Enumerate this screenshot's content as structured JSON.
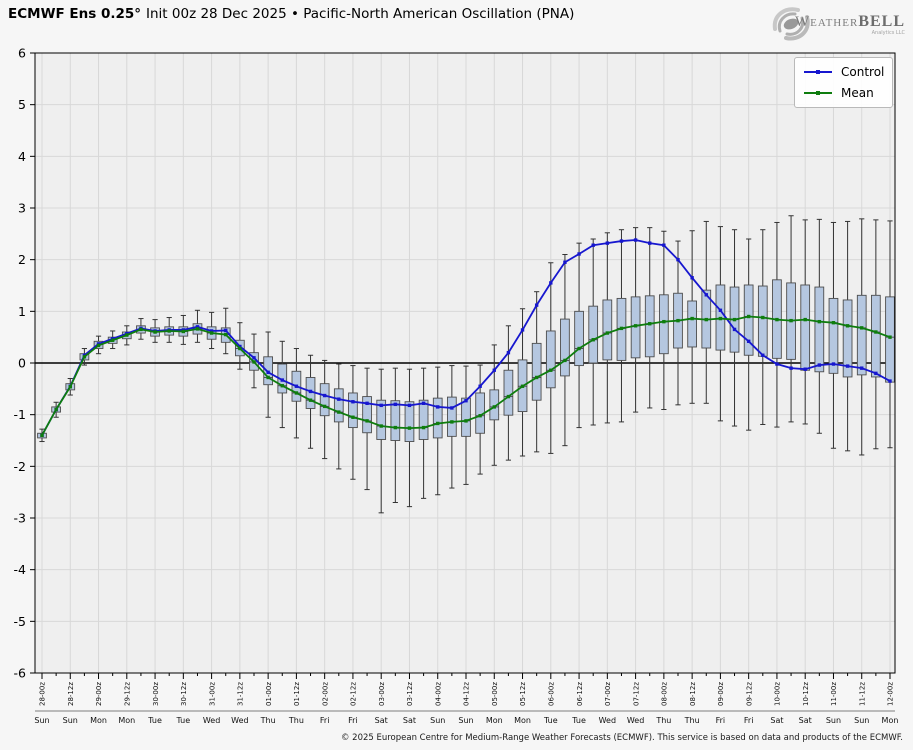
{
  "header": {
    "title_bold": "ECMWF Ens 0.25°",
    "title_rest": "Init 00z 28 Dec 2025 • Pacific-North American Oscillation (PNA)"
  },
  "logo": {
    "brand_1": "Weather",
    "brand_2": "BELL",
    "tagline": "Analytics LLC"
  },
  "legend": {
    "items": [
      {
        "label": "Control",
        "color": "#1717cf"
      },
      {
        "label": "Mean",
        "color": "#0e7d0e"
      }
    ]
  },
  "footer": {
    "copyright": "© 2025 European Centre for Medium-Range Weather Forecasts (ECMWF). This service is based on data and products of the ECMWF."
  },
  "chart_data": {
    "type": "line",
    "overlay": "box-whisker ensemble spread at every 6-hour step",
    "title": "ECMWF Ens 0.25° Init 00z 28 Dec 2025 • Pacific-North American Oscillation (PNA)",
    "ylim": [
      -6,
      6
    ],
    "y_ticks": [
      -6,
      -5,
      -4,
      -3,
      -2,
      -1,
      0,
      1,
      2,
      3,
      4,
      5,
      6
    ],
    "grid": true,
    "legend_position": "top-right",
    "x_step_hours": 6,
    "x_tick_labels": [
      "28-00z",
      "28-12z",
      "29-00z",
      "29-12z",
      "30-00z",
      "30-12z",
      "31-00z",
      "31-12z",
      "01-00z",
      "01-12z",
      "02-00z",
      "02-12z",
      "03-00z",
      "03-12z",
      "04-00z",
      "04-12z",
      "05-00z",
      "05-12z",
      "06-00z",
      "06-12z",
      "07-00z",
      "07-12z",
      "08-00z",
      "08-12z",
      "09-00z",
      "09-12z",
      "10-00z",
      "10-12z",
      "11-00z",
      "11-12z",
      "12-00z"
    ],
    "x_day_labels": [
      "Sun",
      "Sun",
      "Mon",
      "Mon",
      "Tue",
      "Tue",
      "Wed",
      "Wed",
      "Thu",
      "Thu",
      "Fri",
      "Fri",
      "Sat",
      "Sat",
      "Sun",
      "Sun",
      "Mon",
      "Mon",
      "Tue",
      "Tue",
      "Wed",
      "Wed",
      "Thu",
      "Thu",
      "Fri",
      "Fri",
      "Sat",
      "Sat",
      "Sun",
      "Sun",
      "Mon"
    ],
    "control_color": "#1717cf",
    "mean_color": "#0e7d0e",
    "box_fill": "#b5c7e0",
    "box_edge": "#4d4d4d",
    "whisker_color": "#333333",
    "series": [
      {
        "name": "Control",
        "values": [
          -1.4,
          -0.9,
          -0.45,
          0.15,
          0.37,
          0.47,
          0.57,
          0.67,
          0.62,
          0.64,
          0.64,
          0.7,
          0.62,
          0.63,
          0.32,
          0.1,
          -0.18,
          -0.33,
          -0.45,
          -0.55,
          -0.63,
          -0.7,
          -0.75,
          -0.78,
          -0.82,
          -0.8,
          -0.82,
          -0.78,
          -0.85,
          -0.87,
          -0.73,
          -0.45,
          -0.14,
          0.2,
          0.64,
          1.12,
          1.55,
          1.95,
          2.11,
          2.28,
          2.32,
          2.36,
          2.38,
          2.32,
          2.28,
          2.0,
          1.65,
          1.32,
          1.02,
          0.65,
          0.42,
          0.15,
          -0.02,
          -0.1,
          -0.12,
          -0.04,
          -0.02,
          -0.06,
          -0.1,
          -0.2,
          -0.35
        ]
      },
      {
        "name": "Mean",
        "values": [
          -1.4,
          -0.9,
          -0.46,
          0.12,
          0.34,
          0.44,
          0.54,
          0.65,
          0.6,
          0.62,
          0.61,
          0.66,
          0.58,
          0.55,
          0.28,
          0.02,
          -0.28,
          -0.44,
          -0.58,
          -0.72,
          -0.84,
          -0.95,
          -1.05,
          -1.12,
          -1.22,
          -1.25,
          -1.26,
          -1.25,
          -1.17,
          -1.14,
          -1.12,
          -1.02,
          -0.85,
          -0.65,
          -0.45,
          -0.28,
          -0.14,
          0.05,
          0.28,
          0.45,
          0.58,
          0.67,
          0.72,
          0.76,
          0.8,
          0.82,
          0.86,
          0.84,
          0.86,
          0.84,
          0.9,
          0.88,
          0.84,
          0.82,
          0.84,
          0.8,
          0.78,
          0.72,
          0.68,
          0.6,
          0.5
        ]
      }
    ],
    "boxes": {
      "q1": [
        -1.45,
        -0.95,
        -0.52,
        0.06,
        0.28,
        0.38,
        0.47,
        0.58,
        0.52,
        0.54,
        0.52,
        0.56,
        0.46,
        0.4,
        0.14,
        -0.14,
        -0.42,
        -0.58,
        -0.74,
        -0.88,
        -1.02,
        -1.14,
        -1.25,
        -1.35,
        -1.48,
        -1.5,
        -1.52,
        -1.48,
        -1.45,
        -1.42,
        -1.42,
        -1.36,
        -1.1,
        -1.01,
        -0.94,
        -0.72,
        -0.48,
        -0.25,
        -0.05,
        0.0,
        0.06,
        0.05,
        0.1,
        0.12,
        0.18,
        0.29,
        0.31,
        0.29,
        0.25,
        0.21,
        0.15,
        0.13,
        0.09,
        0.07,
        -0.14,
        -0.17,
        -0.2,
        -0.27,
        -0.23,
        -0.27,
        -0.37
      ],
      "q3": [
        -1.36,
        -0.85,
        -0.4,
        0.18,
        0.42,
        0.5,
        0.6,
        0.72,
        0.68,
        0.7,
        0.7,
        0.76,
        0.7,
        0.68,
        0.44,
        0.2,
        0.12,
        -0.02,
        -0.16,
        -0.28,
        -0.4,
        -0.5,
        -0.58,
        -0.65,
        -0.72,
        -0.73,
        -0.75,
        -0.72,
        -0.68,
        -0.66,
        -0.68,
        -0.58,
        -0.52,
        -0.14,
        0.06,
        0.38,
        0.62,
        0.85,
        1.0,
        1.1,
        1.22,
        1.25,
        1.28,
        1.3,
        1.32,
        1.35,
        1.2,
        1.41,
        1.51,
        1.47,
        1.51,
        1.49,
        1.61,
        1.55,
        1.51,
        1.47,
        1.25,
        1.22,
        1.31,
        1.31,
        1.28
      ],
      "lo": [
        -1.52,
        -1.05,
        -0.62,
        -0.04,
        0.18,
        0.28,
        0.35,
        0.46,
        0.4,
        0.4,
        0.36,
        0.4,
        0.28,
        0.18,
        -0.12,
        -0.48,
        -1.05,
        -1.25,
        -1.45,
        -1.65,
        -1.85,
        -2.05,
        -2.25,
        -2.45,
        -2.9,
        -2.7,
        -2.78,
        -2.62,
        -2.55,
        -2.42,
        -2.35,
        -2.15,
        -1.98,
        -1.88,
        -1.8,
        -1.72,
        -1.75,
        -1.6,
        -1.25,
        -1.2,
        -1.16,
        -1.14,
        -0.95,
        -0.87,
        -0.9,
        -0.81,
        -0.78,
        -0.78,
        -1.12,
        -1.22,
        -1.3,
        -1.19,
        -1.24,
        -1.14,
        -1.18,
        -1.36,
        -1.65,
        -1.7,
        -1.78,
        -1.66,
        -1.64
      ],
      "hi": [
        -1.28,
        -0.76,
        -0.3,
        0.28,
        0.52,
        0.62,
        0.72,
        0.86,
        0.84,
        0.88,
        0.92,
        1.02,
        0.98,
        1.06,
        0.78,
        0.56,
        0.6,
        0.42,
        0.28,
        0.15,
        0.05,
        -0.02,
        -0.05,
        -0.1,
        -0.12,
        -0.1,
        -0.12,
        -0.1,
        -0.08,
        -0.05,
        -0.06,
        -0.04,
        0.35,
        0.72,
        1.05,
        1.38,
        1.94,
        2.1,
        2.32,
        2.4,
        2.52,
        2.58,
        2.62,
        2.62,
        2.55,
        2.36,
        2.56,
        2.74,
        2.64,
        2.58,
        2.4,
        2.58,
        2.72,
        2.85,
        2.77,
        2.78,
        2.72,
        2.74,
        2.79,
        2.77,
        2.75
      ]
    }
  }
}
